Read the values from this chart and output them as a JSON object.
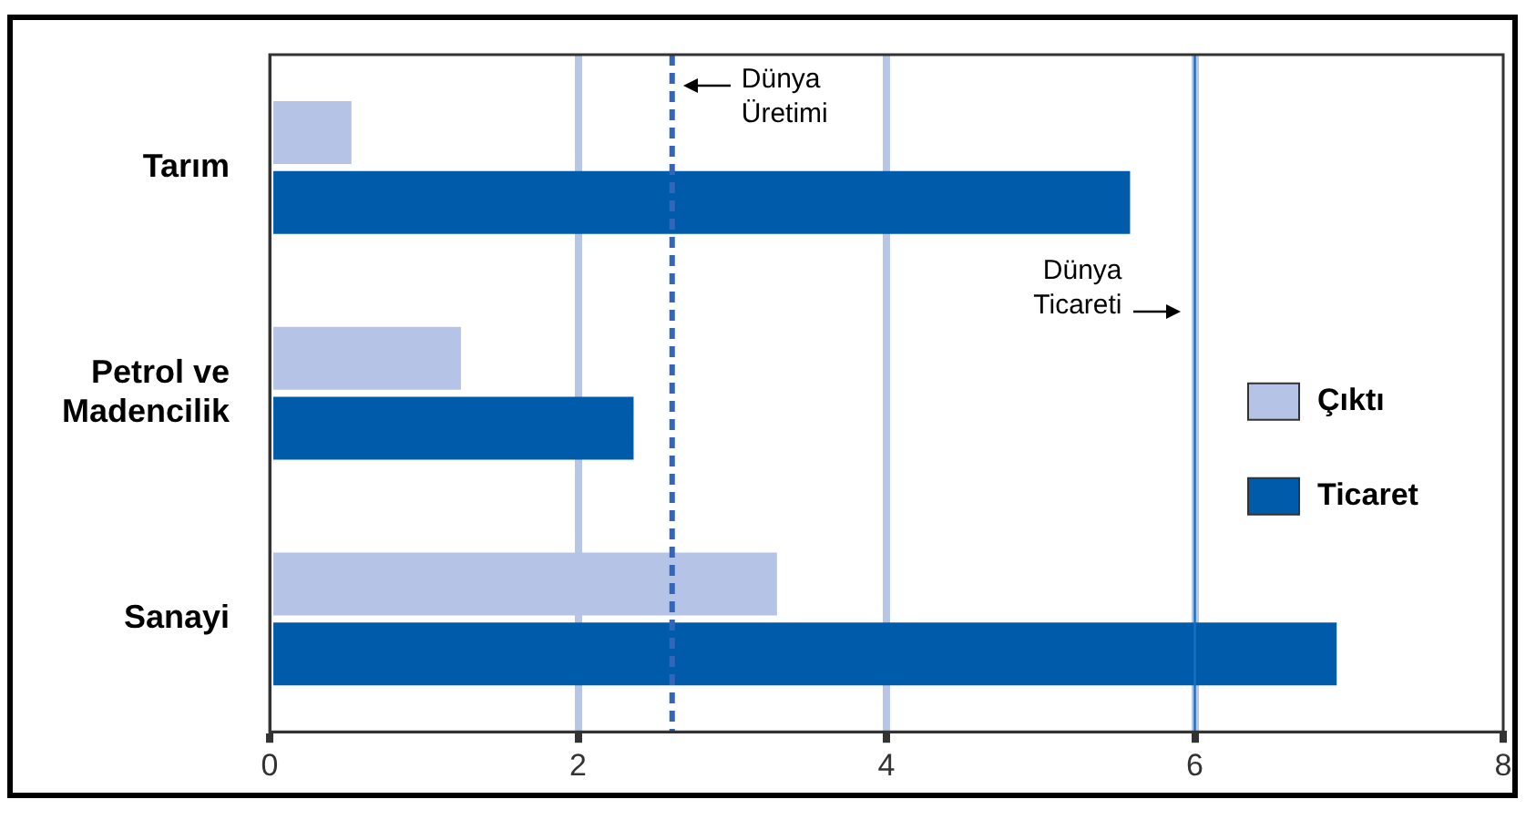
{
  "chart_data": {
    "type": "bar",
    "orientation": "horizontal",
    "categories": [
      "Tarım",
      "Petrol ve Madencilik",
      "Sanayi"
    ],
    "series": [
      {
        "name": "Çıktı",
        "color": "#b4c3e6",
        "values": [
          0.53,
          1.24,
          3.29
        ]
      },
      {
        "name": "Ticaret",
        "color": "#005bab",
        "values": [
          5.58,
          2.36,
          6.92
        ]
      }
    ],
    "xlim": [
      0,
      8
    ],
    "xticks": [
      0,
      2,
      4,
      6,
      8
    ],
    "grid": "x",
    "legend": "right",
    "ref_lines": [
      {
        "axis": "x",
        "value": 2.61,
        "label": "Dünya Üretimi",
        "color": "#3366bb",
        "line_style": "dashed"
      },
      {
        "axis": "x",
        "value": 6,
        "label": "Dünya Ticareti",
        "color": "#1a6fc0",
        "line_style": "solid"
      }
    ]
  }
}
